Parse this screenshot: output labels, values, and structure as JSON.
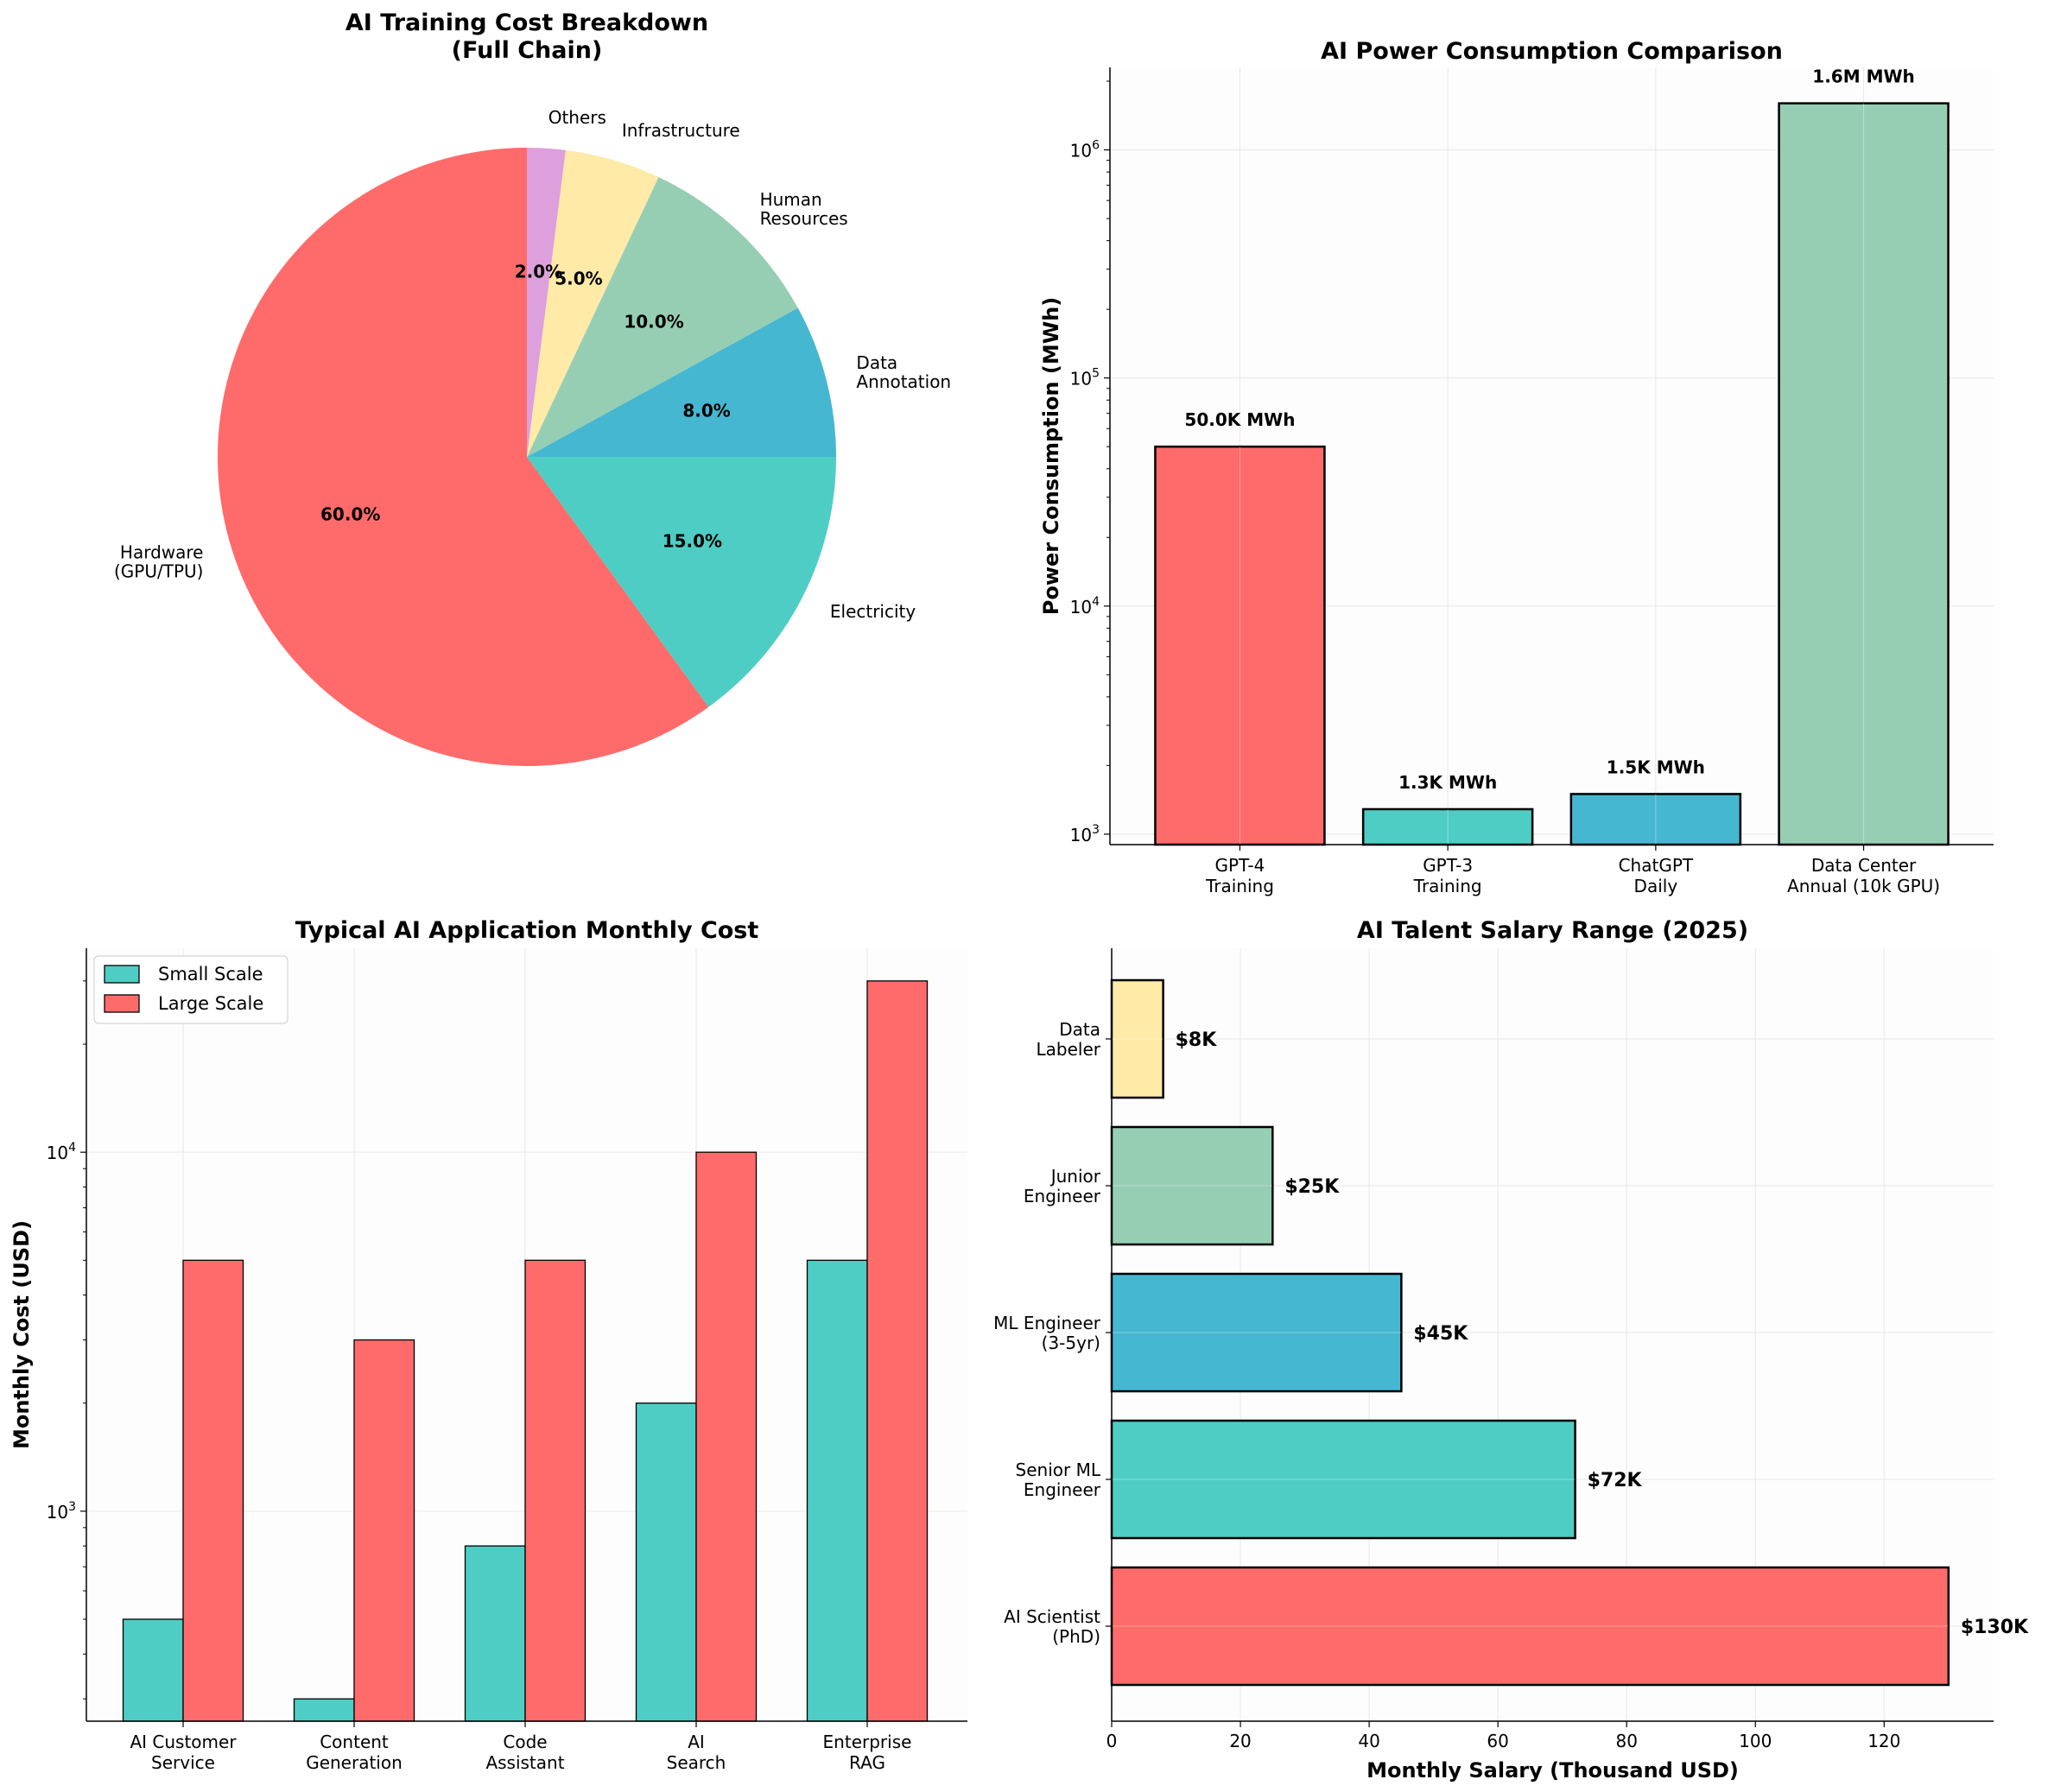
{
  "chart_data": [
    {
      "type": "pie",
      "title": "AI Training Cost Breakdown\n(Full Chain)",
      "labels": [
        "Hardware\n(GPU/TPU)",
        "Electricity",
        "Data\nAnnotation",
        "Human\nResources",
        "Infrastructure",
        "Others"
      ],
      "values": [
        60,
        15,
        8,
        10,
        5,
        2
      ],
      "percent_labels": [
        "60.0%",
        "15.0%",
        "8.0%",
        "10.0%",
        "5.0%",
        "2.0%"
      ],
      "colors": [
        "#FF6B6B",
        "#4ECDC4",
        "#45B7D1",
        "#96CEB4",
        "#FFEAA7",
        "#DDA0DD"
      ],
      "start_angle_deg": 90,
      "direction": "counterclockwise"
    },
    {
      "type": "bar",
      "title": "AI Power Consumption Comparison",
      "ylabel": "Power Consumption (MWh)",
      "yscale": "log",
      "ylim": [
        900,
        2300000
      ],
      "categories": [
        "GPT-4\nTraining",
        "GPT-3\nTraining",
        "ChatGPT\nDaily",
        "Data Center\nAnnual (10k GPU)"
      ],
      "values": [
        50000,
        1287,
        1500,
        1600000
      ],
      "value_labels": [
        "50.0K MWh",
        "1.3K MWh",
        "1.5K MWh",
        "1.6M MWh"
      ],
      "colors": [
        "#FF6B6B",
        "#4ECDC4",
        "#45B7D1",
        "#96CEB4"
      ],
      "yticks": [
        {
          "value": 1000,
          "base": "10",
          "exp": "3"
        },
        {
          "value": 10000,
          "base": "10",
          "exp": "4"
        },
        {
          "value": 100000,
          "base": "10",
          "exp": "5"
        },
        {
          "value": 1000000,
          "base": "10",
          "exp": "6"
        }
      ],
      "grid": true
    },
    {
      "type": "bar",
      "title": "Typical AI Application Monthly Cost",
      "ylabel": "Monthly Cost (USD)",
      "yscale": "log",
      "ylim": [
        260,
        37000
      ],
      "categories": [
        "AI Customer\nService",
        "Content\nGeneration",
        "Code\nAssistant",
        "AI\nSearch",
        "Enterprise\nRAG"
      ],
      "series": [
        {
          "name": "Small Scale",
          "color": "#4ECDC4",
          "values": [
            500,
            300,
            800,
            2000,
            5000
          ]
        },
        {
          "name": "Large Scale",
          "color": "#FF6B6B",
          "values": [
            5000,
            3000,
            5000,
            10000,
            30000
          ]
        }
      ],
      "yticks": [
        {
          "value": 1000,
          "base": "10",
          "exp": "3"
        },
        {
          "value": 10000,
          "base": "10",
          "exp": "4"
        }
      ],
      "legend_position": "top-left",
      "grid": true
    },
    {
      "type": "bar",
      "orientation": "horizontal",
      "title": "AI Talent Salary Range (2025)",
      "xlabel": "Monthly Salary (Thousand USD)",
      "xlim": [
        0,
        137
      ],
      "categories": [
        "AI Scientist\n(PhD)",
        "Senior ML\nEngineer",
        "ML Engineer\n(3-5yr)",
        "Junior\nEngineer",
        "Data\nLabeler"
      ],
      "values": [
        130,
        72,
        45,
        25,
        8
      ],
      "value_labels": [
        "$130K",
        "$72K",
        "$45K",
        "$25K",
        "$8K"
      ],
      "colors": [
        "#FF6B6B",
        "#4ECDC4",
        "#45B7D1",
        "#96CEB4",
        "#FFEAA7"
      ],
      "xticks": [
        "0",
        "20",
        "40",
        "60",
        "80",
        "100",
        "120"
      ],
      "grid": true
    }
  ]
}
